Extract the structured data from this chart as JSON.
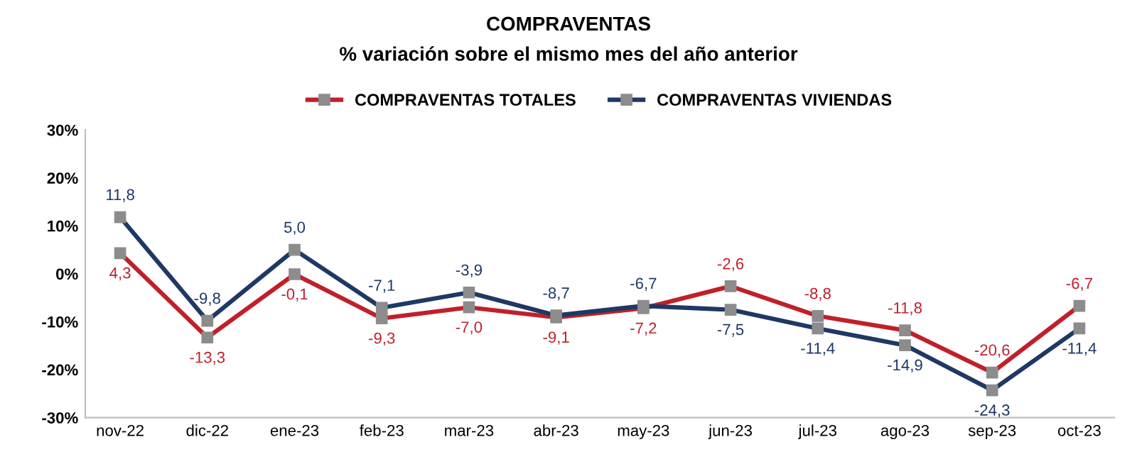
{
  "chart_data": {
    "type": "line",
    "title": "COMPRAVENTAS",
    "subtitle": "% variación sobre el mismo mes del año anterior",
    "categories": [
      "nov-22",
      "dic-22",
      "ene-23",
      "feb-23",
      "mar-23",
      "abr-23",
      "may-23",
      "jun-23",
      "jul-23",
      "ago-23",
      "sep-23",
      "oct-23"
    ],
    "series": [
      {
        "name": "COMPRAVENTAS TOTALES",
        "color": "#c0202a",
        "values": [
          4.3,
          -13.3,
          -0.1,
          -9.3,
          -7.0,
          -9.1,
          -7.2,
          -2.6,
          -8.8,
          -11.8,
          -20.6,
          -6.7
        ],
        "value_labels": [
          "4,3",
          "-13,3",
          "-0,1",
          "-9,3",
          "-7,0",
          "-9,1",
          "-7,2",
          "-2,6",
          "-8,8",
          "-11,8",
          "-20,6",
          "-6,7"
        ]
      },
      {
        "name": "COMPRAVENTAS VIVIENDAS",
        "color": "#1f3864",
        "values": [
          11.8,
          -9.8,
          5.0,
          -7.1,
          -3.9,
          -8.7,
          -6.7,
          -7.5,
          -11.4,
          -14.9,
          -24.3,
          -11.4
        ],
        "value_labels": [
          "11,8",
          "-9,8",
          "5,0",
          "-7,1",
          "-3,9",
          "-8,7",
          "-6,7",
          "-7,5",
          "-11,4",
          "-14,9",
          "-24,3",
          "-11,4"
        ]
      }
    ],
    "ylim": [
      -30,
      30
    ],
    "yticks": [
      {
        "value": -30,
        "label": "-30%"
      },
      {
        "value": -20,
        "label": "-20%"
      },
      {
        "value": -10,
        "label": "-10%"
      },
      {
        "value": 0,
        "label": "0%"
      },
      {
        "value": 10,
        "label": "10%"
      },
      {
        "value": 20,
        "label": "20%"
      },
      {
        "value": 30,
        "label": "30%"
      }
    ],
    "grid": false,
    "legend": "top",
    "marker": "square",
    "line_style": "solid"
  }
}
